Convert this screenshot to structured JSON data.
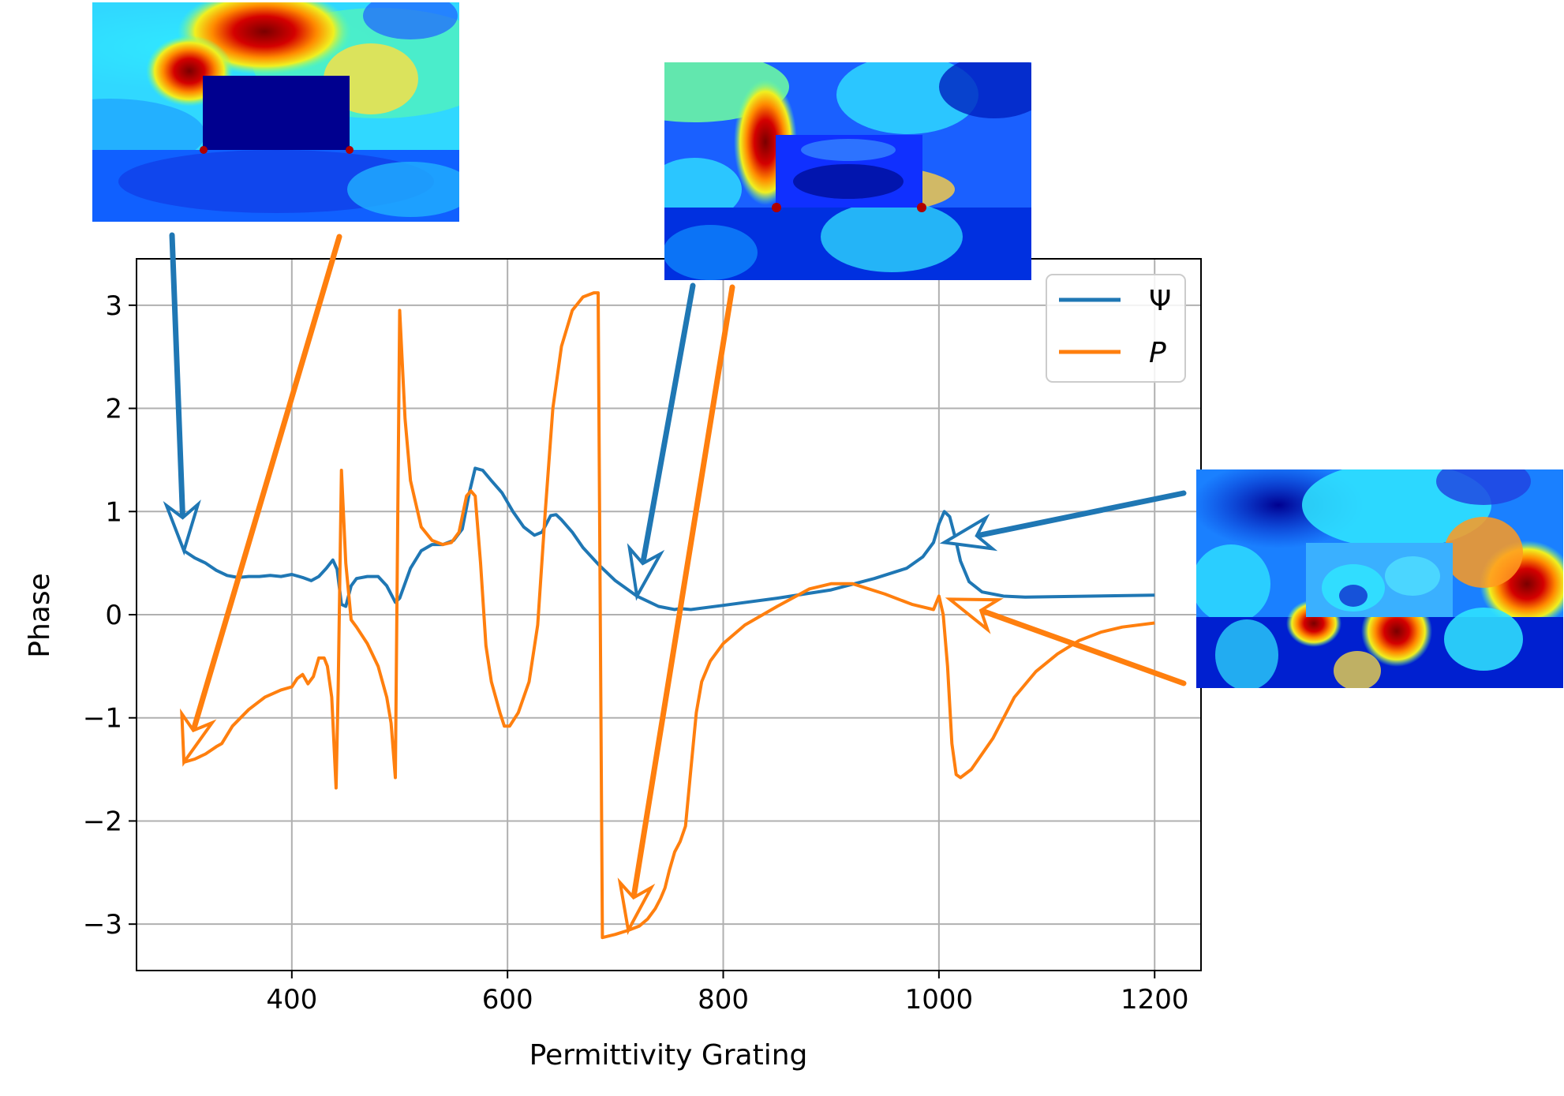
{
  "colors": {
    "psi": "#1f77b4",
    "p": "#ff7f0e",
    "grid": "#b0b0b0",
    "axes": "#000000",
    "background": "#ffffff"
  },
  "field_maps": [
    {
      "semantic": "field-map-low-permittivity",
      "style": "jet colormap field intensity"
    },
    {
      "semantic": "field-map-mid-permittivity",
      "style": "jet colormap field intensity"
    },
    {
      "semantic": "field-map-resonance-1000",
      "style": "jet colormap field intensity"
    }
  ],
  "chart_data": {
    "type": "line",
    "title": "",
    "xlabel": "Permittivity Grating",
    "ylabel": "Phase",
    "xlim": [
      256,
      1243
    ],
    "ylim": [
      -3.45,
      3.45
    ],
    "xticks": [
      400,
      600,
      800,
      1000,
      1200
    ],
    "xtick_labels": [
      "400",
      "600",
      "800",
      "1000",
      "1200"
    ],
    "yticks": [
      -3,
      -2,
      -1,
      0,
      1,
      2,
      3
    ],
    "ytick_labels": [
      "−3",
      "−2",
      "−1",
      "0",
      "1",
      "2",
      "3"
    ],
    "grid": true,
    "legend": {
      "placement": "top-right",
      "entries": [
        "Ψ",
        "P"
      ]
    },
    "series": [
      {
        "name": "Ψ",
        "color": "#1f77b4",
        "points": [
          [
            300,
            0.62
          ],
          [
            310,
            0.55
          ],
          [
            320,
            0.5
          ],
          [
            330,
            0.43
          ],
          [
            340,
            0.38
          ],
          [
            350,
            0.36
          ],
          [
            360,
            0.37
          ],
          [
            370,
            0.37
          ],
          [
            380,
            0.38
          ],
          [
            390,
            0.37
          ],
          [
            400,
            0.39
          ],
          [
            410,
            0.36
          ],
          [
            418,
            0.33
          ],
          [
            425,
            0.37
          ],
          [
            432,
            0.45
          ],
          [
            438,
            0.53
          ],
          [
            442,
            0.44
          ],
          [
            446,
            0.1
          ],
          [
            450,
            0.08
          ],
          [
            455,
            0.28
          ],
          [
            460,
            0.35
          ],
          [
            470,
            0.37
          ],
          [
            480,
            0.37
          ],
          [
            488,
            0.28
          ],
          [
            496,
            0.12
          ],
          [
            500,
            0.16
          ],
          [
            510,
            0.45
          ],
          [
            520,
            0.62
          ],
          [
            530,
            0.68
          ],
          [
            540,
            0.68
          ],
          [
            550,
            0.72
          ],
          [
            558,
            0.83
          ],
          [
            565,
            1.2
          ],
          [
            570,
            1.42
          ],
          [
            577,
            1.4
          ],
          [
            585,
            1.3
          ],
          [
            595,
            1.18
          ],
          [
            605,
            1.0
          ],
          [
            615,
            0.85
          ],
          [
            625,
            0.77
          ],
          [
            632,
            0.8
          ],
          [
            640,
            0.96
          ],
          [
            645,
            0.97
          ],
          [
            650,
            0.92
          ],
          [
            660,
            0.8
          ],
          [
            670,
            0.65
          ],
          [
            685,
            0.48
          ],
          [
            700,
            0.33
          ],
          [
            720,
            0.18
          ],
          [
            740,
            0.08
          ],
          [
            755,
            0.05
          ],
          [
            760,
            0.06
          ],
          [
            770,
            0.05
          ],
          [
            800,
            0.09
          ],
          [
            850,
            0.16
          ],
          [
            900,
            0.24
          ],
          [
            940,
            0.35
          ],
          [
            970,
            0.45
          ],
          [
            985,
            0.56
          ],
          [
            995,
            0.7
          ],
          [
            1000,
            0.88
          ],
          [
            1005,
            1.0
          ],
          [
            1010,
            0.95
          ],
          [
            1015,
            0.75
          ],
          [
            1020,
            0.52
          ],
          [
            1028,
            0.32
          ],
          [
            1040,
            0.22
          ],
          [
            1060,
            0.18
          ],
          [
            1080,
            0.17
          ],
          [
            1200,
            0.19
          ]
        ]
      },
      {
        "name": "P",
        "color": "#ff7f0e",
        "points": [
          [
            300,
            -1.43
          ],
          [
            310,
            -1.4
          ],
          [
            320,
            -1.35
          ],
          [
            330,
            -1.28
          ],
          [
            335,
            -1.25
          ],
          [
            345,
            -1.08
          ],
          [
            360,
            -0.92
          ],
          [
            375,
            -0.8
          ],
          [
            390,
            -0.73
          ],
          [
            400,
            -0.7
          ],
          [
            405,
            -0.62
          ],
          [
            410,
            -0.58
          ],
          [
            415,
            -0.67
          ],
          [
            420,
            -0.6
          ],
          [
            425,
            -0.42
          ],
          [
            430,
            -0.42
          ],
          [
            433,
            -0.5
          ],
          [
            437,
            -0.8
          ],
          [
            441,
            -1.68
          ],
          [
            443,
            -0.7
          ],
          [
            446,
            1.4
          ],
          [
            450,
            0.5
          ],
          [
            455,
            -0.05
          ],
          [
            460,
            -0.12
          ],
          [
            470,
            -0.28
          ],
          [
            480,
            -0.5
          ],
          [
            488,
            -0.8
          ],
          [
            492,
            -1.05
          ],
          [
            496,
            -1.58
          ],
          [
            500,
            2.95
          ],
          [
            505,
            1.9
          ],
          [
            510,
            1.3
          ],
          [
            520,
            0.85
          ],
          [
            530,
            0.72
          ],
          [
            540,
            0.68
          ],
          [
            548,
            0.7
          ],
          [
            555,
            0.8
          ],
          [
            562,
            1.15
          ],
          [
            566,
            1.2
          ],
          [
            570,
            1.15
          ],
          [
            575,
            0.5
          ],
          [
            580,
            -0.3
          ],
          [
            585,
            -0.65
          ],
          [
            593,
            -0.95
          ],
          [
            597,
            -1.08
          ],
          [
            602,
            -1.08
          ],
          [
            610,
            -0.95
          ],
          [
            620,
            -0.65
          ],
          [
            628,
            -0.1
          ],
          [
            635,
            1.0
          ],
          [
            642,
            2.0
          ],
          [
            650,
            2.6
          ],
          [
            660,
            2.95
          ],
          [
            670,
            3.08
          ],
          [
            680,
            3.12
          ],
          [
            684,
            3.12
          ],
          [
            688,
            -3.13
          ],
          [
            700,
            -3.1
          ],
          [
            712,
            -3.06
          ],
          [
            722,
            -3.02
          ],
          [
            730,
            -2.95
          ],
          [
            737,
            -2.85
          ],
          [
            742,
            -2.75
          ],
          [
            746,
            -2.65
          ],
          [
            750,
            -2.48
          ],
          [
            755,
            -2.3
          ],
          [
            760,
            -2.2
          ],
          [
            765,
            -2.05
          ],
          [
            770,
            -1.5
          ],
          [
            775,
            -0.95
          ],
          [
            780,
            -0.65
          ],
          [
            788,
            -0.45
          ],
          [
            800,
            -0.28
          ],
          [
            820,
            -0.1
          ],
          [
            850,
            0.08
          ],
          [
            880,
            0.25
          ],
          [
            900,
            0.3
          ],
          [
            920,
            0.3
          ],
          [
            950,
            0.2
          ],
          [
            975,
            0.1
          ],
          [
            995,
            0.05
          ],
          [
            1000,
            0.18
          ],
          [
            1004,
            0.0
          ],
          [
            1008,
            -0.5
          ],
          [
            1012,
            -1.25
          ],
          [
            1016,
            -1.55
          ],
          [
            1020,
            -1.58
          ],
          [
            1030,
            -1.5
          ],
          [
            1050,
            -1.2
          ],
          [
            1070,
            -0.8
          ],
          [
            1090,
            -0.55
          ],
          [
            1110,
            -0.38
          ],
          [
            1130,
            -0.25
          ],
          [
            1150,
            -0.17
          ],
          [
            1170,
            -0.12
          ],
          [
            1200,
            -0.08
          ]
        ]
      }
    ],
    "annotations": [
      {
        "semantic": "arrow-psi-to-map-1",
        "series": "Ψ",
        "target": [
          300,
          0.62
        ]
      },
      {
        "semantic": "arrow-p-to-map-1",
        "series": "P",
        "target": [
          300,
          -1.43
        ]
      },
      {
        "semantic": "arrow-psi-to-map-2",
        "series": "Ψ",
        "target": [
          720,
          0.18
        ]
      },
      {
        "semantic": "arrow-p-to-map-2",
        "series": "P",
        "target": [
          712,
          -3.06
        ]
      },
      {
        "semantic": "arrow-psi-to-map-3",
        "series": "Ψ",
        "target": [
          1005,
          0.7
        ]
      },
      {
        "semantic": "arrow-p-to-map-3",
        "series": "P",
        "target": [
          1010,
          0.15
        ]
      }
    ]
  }
}
